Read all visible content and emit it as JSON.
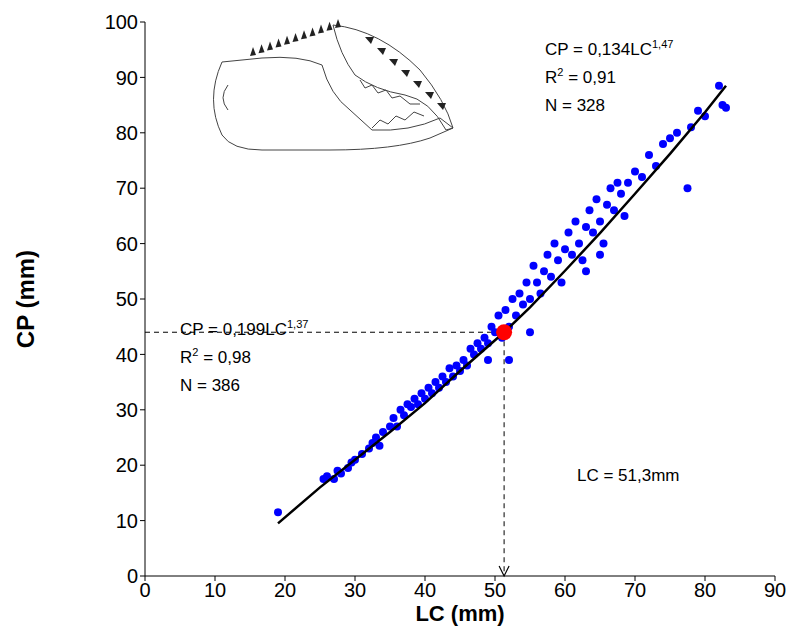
{
  "chart_data": {
    "type": "scatter",
    "x_label": "LC (mm)",
    "y_label": "CP (mm)",
    "xlim": [
      0,
      90
    ],
    "xticks": [
      0,
      10,
      20,
      30,
      40,
      50,
      60,
      70,
      80,
      90
    ],
    "ylim": [
      0,
      100
    ],
    "yticks": [
      0,
      10,
      20,
      30,
      40,
      50,
      60,
      70,
      80,
      90,
      100
    ],
    "grid": false,
    "series": [
      {
        "type": "scatter",
        "color": "#0000ff",
        "marker": "circle",
        "x": [
          19,
          25.5,
          26,
          27,
          27.5,
          28,
          29,
          29.5,
          30,
          31,
          32,
          32.5,
          33,
          33.5,
          34,
          35,
          35.5,
          36,
          36.5,
          37,
          37.5,
          38,
          38.5,
          39,
          39.5,
          40,
          40.5,
          41,
          41.5,
          42,
          42.5,
          43,
          43.5,
          44,
          44.5,
          45,
          45.5,
          46,
          46.5,
          47,
          47.5,
          48,
          48.5,
          49,
          49,
          49.5,
          50,
          50.5,
          51,
          51.5,
          52,
          52,
          52.5,
          53,
          53.5,
          54,
          54.5,
          55,
          55,
          55.5,
          56,
          56.5,
          57,
          57.5,
          58,
          58.5,
          59,
          59.5,
          60,
          60.5,
          61,
          61.5,
          62,
          62.5,
          63,
          63,
          63.5,
          64,
          64.5,
          65,
          65,
          65.5,
          66,
          66.5,
          67,
          67.5,
          68,
          68.5,
          69,
          70,
          71,
          72,
          73,
          74,
          75,
          76,
          77.5,
          78,
          79,
          80,
          82,
          82.5,
          83
        ],
        "y": [
          11.5,
          17.5,
          18,
          17.5,
          19,
          18.5,
          19.5,
          20.5,
          21,
          22,
          23,
          24,
          25,
          23.5,
          26,
          27,
          28.5,
          27,
          30,
          29,
          31,
          30.5,
          32,
          31,
          33,
          32,
          34,
          33,
          35,
          34,
          36,
          35,
          37.5,
          36,
          38,
          37,
          39,
          38,
          41,
          40,
          42,
          41,
          43,
          42,
          39,
          45,
          44,
          47,
          43,
          48,
          45,
          39,
          50,
          47,
          51,
          49,
          53,
          50,
          44,
          56,
          53,
          51,
          55,
          58,
          54,
          60,
          57,
          53,
          59,
          62,
          58,
          64,
          60,
          57,
          63,
          55,
          66,
          62,
          68,
          64,
          58,
          60,
          67,
          70,
          66,
          71,
          69,
          65,
          71,
          73,
          72,
          76,
          74,
          78,
          79,
          80,
          70,
          81,
          84,
          83,
          88.5,
          85,
          84.5
        ]
      },
      {
        "type": "line",
        "color": "#000000",
        "line_style": "solid",
        "x": [
          19,
          25,
          30,
          35,
          40,
          45,
          51.3
        ],
        "y": [
          9.5,
          16,
          21,
          26,
          31.2,
          37,
          44
        ],
        "equation": [
          [
            "CP = 0,199LC",
            "1,37"
          ],
          [
            "R",
            "2",
            " = 0,98"
          ],
          [
            "N = 386"
          ]
        ]
      },
      {
        "type": "line",
        "color": "#000000",
        "line_style": "solid",
        "x": [
          51.3,
          55,
          60,
          65,
          70,
          75,
          80,
          83
        ],
        "y": [
          44,
          48.5,
          55.1,
          61.9,
          69,
          76.2,
          83.7,
          88.5
        ],
        "equation": [
          [
            "CP = 0,134LC",
            "1,47"
          ],
          [
            "R",
            "2",
            " = 0,91"
          ],
          [
            "N = 328"
          ]
        ]
      }
    ],
    "breakpoint": {
      "x": 51.3,
      "y": 44,
      "color": "#ff0000",
      "label": "LC = 51,3mm"
    }
  }
}
